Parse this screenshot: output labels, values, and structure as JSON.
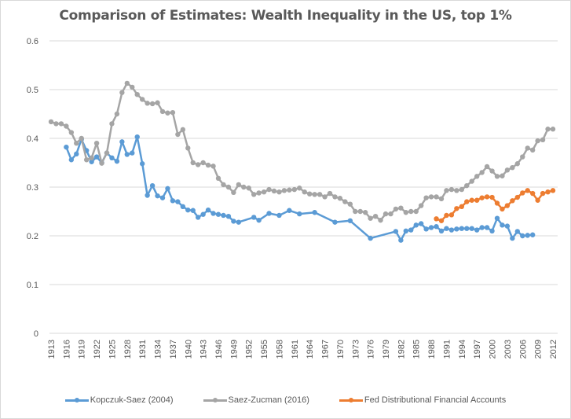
{
  "chart_data": {
    "type": "line",
    "title": "Comparison of Estimates: Wealth Inequality in the US, top 1%",
    "xlabel": "",
    "ylabel": "",
    "xlim": [
      1913,
      2012
    ],
    "ylim": [
      0,
      0.6
    ],
    "y_ticks": [
      "0",
      "0.1",
      "0.2",
      "0.3",
      "0.4",
      "0.5",
      "0.6"
    ],
    "x_ticks": [
      "1913",
      "1916",
      "1919",
      "1922",
      "1925",
      "1928",
      "1931",
      "1934",
      "1937",
      "1940",
      "1943",
      "1946",
      "1949",
      "1952",
      "1955",
      "1958",
      "1961",
      "1964",
      "1967",
      "1970",
      "1973",
      "1976",
      "1979",
      "1982",
      "1985",
      "1988",
      "1991",
      "1994",
      "1997",
      "2000",
      "2003",
      "2006",
      "2009",
      "2012"
    ],
    "grid": true,
    "legend_position": "bottom",
    "series": [
      {
        "name": "Kopczuk-Saez (2004)",
        "color": "#5b9bd5",
        "x": [
          1916,
          1917,
          1918,
          1919,
          1920,
          1921,
          1922,
          1923,
          1924,
          1925,
          1926,
          1927,
          1928,
          1929,
          1930,
          1931,
          1932,
          1933,
          1934,
          1935,
          1936,
          1937,
          1938,
          1939,
          1940,
          1941,
          1942,
          1943,
          1944,
          1945,
          1946,
          1947,
          1948,
          1949,
          1950,
          1953,
          1954,
          1956,
          1958,
          1960,
          1962,
          1965,
          1969,
          1972,
          1976,
          1981,
          1982,
          1983,
          1984,
          1985,
          1986,
          1987,
          1988,
          1989,
          1990,
          1991,
          1992,
          1993,
          1994,
          1995,
          1996,
          1997,
          1998,
          1999,
          2000,
          2001,
          2002,
          2003,
          2004,
          2005,
          2006,
          2007,
          2008
        ],
        "values": [
          0.382,
          0.356,
          0.368,
          0.398,
          0.375,
          0.352,
          0.362,
          0.35,
          0.37,
          0.36,
          0.353,
          0.393,
          0.367,
          0.37,
          0.403,
          0.348,
          0.283,
          0.303,
          0.282,
          0.278,
          0.297,
          0.272,
          0.27,
          0.26,
          0.253,
          0.252,
          0.238,
          0.244,
          0.253,
          0.246,
          0.244,
          0.242,
          0.24,
          0.23,
          0.228,
          0.238,
          0.232,
          0.246,
          0.242,
          0.252,
          0.245,
          0.248,
          0.228,
          0.231,
          0.195,
          0.209,
          0.191,
          0.21,
          0.212,
          0.222,
          0.225,
          0.214,
          0.217,
          0.219,
          0.21,
          0.215,
          0.212,
          0.214,
          0.215,
          0.215,
          0.215,
          0.212,
          0.217,
          0.217,
          0.21,
          0.236,
          0.222,
          0.22,
          0.195,
          0.209,
          0.2,
          0.201,
          0.202
        ]
      },
      {
        "name": "Saez-Zucman (2016)",
        "color": "#a5a5a5",
        "x": [
          1913,
          1914,
          1915,
          1916,
          1917,
          1918,
          1919,
          1920,
          1921,
          1922,
          1923,
          1924,
          1925,
          1926,
          1927,
          1928,
          1929,
          1930,
          1931,
          1932,
          1933,
          1934,
          1935,
          1936,
          1937,
          1938,
          1939,
          1940,
          1941,
          1942,
          1943,
          1944,
          1945,
          1946,
          1947,
          1948,
          1949,
          1950,
          1951,
          1952,
          1953,
          1954,
          1955,
          1956,
          1957,
          1958,
          1959,
          1960,
          1961,
          1962,
          1963,
          1964,
          1965,
          1966,
          1967,
          1968,
          1969,
          1970,
          1971,
          1972,
          1973,
          1974,
          1975,
          1976,
          1977,
          1978,
          1979,
          1980,
          1981,
          1982,
          1983,
          1984,
          1985,
          1986,
          1987,
          1988,
          1989,
          1990,
          1991,
          1992,
          1993,
          1994,
          1995,
          1996,
          1997,
          1998,
          1999,
          2000,
          2001,
          2002,
          2003,
          2004,
          2005,
          2006,
          2007,
          2008,
          2009,
          2010,
          2011,
          2012
        ],
        "values": [
          0.434,
          0.43,
          0.43,
          0.425,
          0.412,
          0.39,
          0.4,
          0.356,
          0.36,
          0.39,
          0.349,
          0.37,
          0.43,
          0.45,
          0.494,
          0.513,
          0.505,
          0.49,
          0.48,
          0.472,
          0.471,
          0.473,
          0.455,
          0.452,
          0.453,
          0.408,
          0.418,
          0.38,
          0.35,
          0.346,
          0.35,
          0.345,
          0.343,
          0.318,
          0.305,
          0.3,
          0.289,
          0.305,
          0.3,
          0.298,
          0.285,
          0.288,
          0.29,
          0.295,
          0.292,
          0.29,
          0.293,
          0.294,
          0.295,
          0.298,
          0.29,
          0.286,
          0.285,
          0.285,
          0.28,
          0.287,
          0.28,
          0.277,
          0.27,
          0.265,
          0.25,
          0.25,
          0.248,
          0.236,
          0.24,
          0.232,
          0.245,
          0.245,
          0.255,
          0.257,
          0.248,
          0.25,
          0.25,
          0.262,
          0.278,
          0.28,
          0.28,
          0.276,
          0.293,
          0.295,
          0.293,
          0.295,
          0.303,
          0.312,
          0.322,
          0.33,
          0.342,
          0.333,
          0.322,
          0.323,
          0.335,
          0.34,
          0.348,
          0.362,
          0.38,
          0.376,
          0.395,
          0.397,
          0.419,
          0.419
        ]
      },
      {
        "name": "Fed Distributional Financial Accounts",
        "color": "#ed7d31",
        "x": [
          1989,
          1990,
          1991,
          1992,
          1993,
          1994,
          1995,
          1996,
          1997,
          1998,
          1999,
          2000,
          2001,
          2002,
          2003,
          2004,
          2005,
          2006,
          2007,
          2008,
          2009,
          2010,
          2011,
          2012
        ],
        "values": [
          0.235,
          0.231,
          0.242,
          0.243,
          0.256,
          0.26,
          0.27,
          0.273,
          0.273,
          0.278,
          0.28,
          0.279,
          0.267,
          0.255,
          0.262,
          0.272,
          0.279,
          0.288,
          0.293,
          0.287,
          0.273,
          0.287,
          0.29,
          0.293
        ]
      }
    ]
  }
}
